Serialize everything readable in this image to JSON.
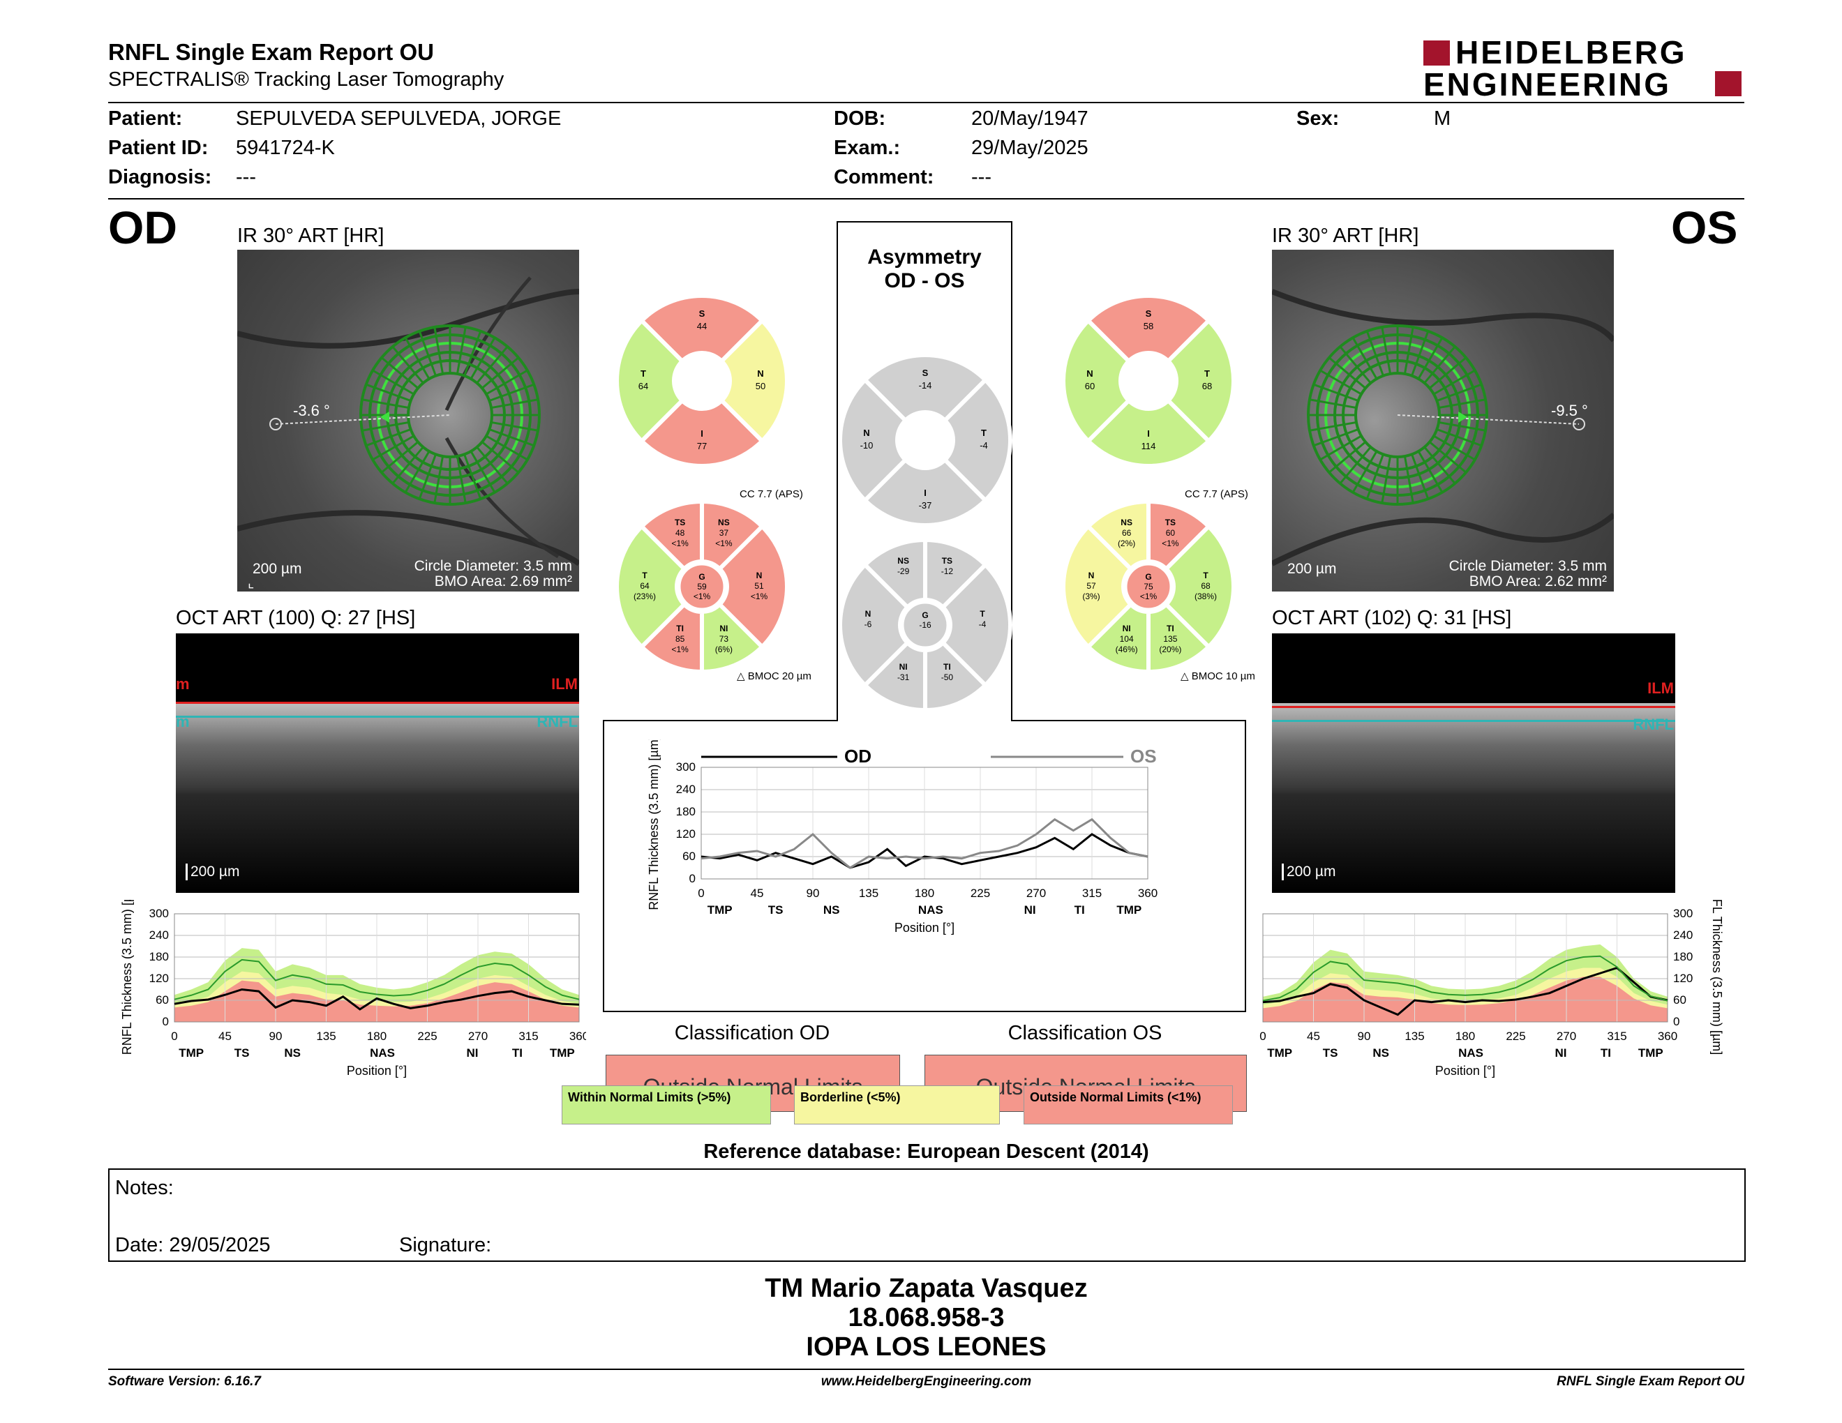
{
  "header": {
    "title": "RNFL Single Exam Report OU",
    "subtitle": "SPECTRALIS® Tracking Laser Tomography",
    "logo_line1": "HEIDELBERG",
    "logo_line2": "ENGINEERING"
  },
  "patient": {
    "patient_label": "Patient:",
    "patient_value": "SEPULVEDA SEPULVEDA, JORGE",
    "id_label": "Patient ID:",
    "id_value": "5941724-K",
    "diag_label": "Diagnosis:",
    "diag_value": "---",
    "dob_label": "DOB:",
    "dob_value": "20/May/1947",
    "exam_label": "Exam.:",
    "exam_value": "29/May/2025",
    "comment_label": "Comment:",
    "comment_value": "---",
    "sex_label": "Sex:",
    "sex_value": "M"
  },
  "od": {
    "eye": "OD",
    "ir_title": "IR 30° ART [HR]",
    "angle": "-3.6 °",
    "scale": "200 µm",
    "circle": "Circle Diameter: 3.5 mm",
    "bmo": "BMO Area: 2.69 mm²",
    "oct_title": "OCT ART (100) Q: 27 [HS]",
    "oct_scale": "200 µm",
    "ilm": "ILM",
    "rnfl": "RNFL",
    "ilm_left": "m",
    "rnfl_left": "m"
  },
  "os": {
    "eye": "OS",
    "ir_title": "IR 30° ART [HR]",
    "angle": "-9.5 °",
    "scale": "200 µm",
    "circle": "Circle Diameter: 3.5 mm",
    "bmo": "BMO Area: 2.62 mm²",
    "oct_title": "OCT ART (102) Q: 31 [HS]",
    "oct_scale": "200 µm",
    "ilm": "ILM",
    "rnfl": "RNFL"
  },
  "asymmetry": {
    "title1": "Asymmetry",
    "title2": "OD - OS"
  },
  "sectors": {
    "od4": {
      "S": "44",
      "T": "64",
      "N": "50",
      "I": "77"
    },
    "os4": {
      "S": "58",
      "N": "60",
      "T": "68",
      "I": "114"
    },
    "asym4": {
      "S": "-14",
      "N": "-10",
      "T": "-4",
      "I": "-37"
    },
    "od6": {
      "TS": [
        "48",
        "<1%"
      ],
      "NS": [
        "37",
        "<1%"
      ],
      "T": [
        "64",
        "(23%)"
      ],
      "G": [
        "59",
        "<1%"
      ],
      "N": [
        "51",
        "<1%"
      ],
      "TI": [
        "85",
        "<1%"
      ],
      "NI": [
        "73",
        "(6%)"
      ]
    },
    "os6": {
      "NS": [
        "66",
        "(2%)"
      ],
      "TS": [
        "60",
        "<1%"
      ],
      "N": [
        "57",
        "(3%)"
      ],
      "G": [
        "75",
        "<1%"
      ],
      "T": [
        "68",
        "(38%)"
      ],
      "NI": [
        "104",
        "(46%)"
      ],
      "TI": [
        "135",
        "(20%)"
      ]
    },
    "asym6": {
      "NS": "-29",
      "TS": "-12",
      "N": "-6",
      "G": "-16",
      "T": "-4",
      "NI": "-31",
      "TI": "-50"
    },
    "cc": "CC 7.7 (APS)",
    "od_bmoc": "BMOC 20 µm",
    "os_bmoc": "BMOC 10 µm"
  },
  "colors": {
    "normal": "#c6f08a",
    "borderline": "#f6f6a0",
    "outside": "#f4978c",
    "gray": "#d0d0d0",
    "brand": "#a3142c"
  },
  "chart_data": [
    {
      "type": "line",
      "name": "od_profile",
      "title": "",
      "xlabel": "Position [°]",
      "ylabel": "RNFL Thickness (3.5 mm) [µm]",
      "xlim": [
        0,
        360
      ],
      "ylim": [
        0,
        300
      ],
      "x_ticks": [
        0,
        45,
        90,
        135,
        180,
        225,
        270,
        315,
        360
      ],
      "y_ticks": [
        0,
        60,
        120,
        180,
        240,
        300
      ],
      "sector_labels": [
        "TMP",
        "TS",
        "NS",
        "NAS",
        "NI",
        "TI",
        "TMP"
      ],
      "x": [
        0,
        15,
        30,
        45,
        60,
        75,
        90,
        105,
        120,
        135,
        150,
        165,
        180,
        195,
        210,
        225,
        240,
        255,
        270,
        285,
        300,
        315,
        330,
        345,
        360
      ],
      "series": [
        {
          "name": "OD",
          "values": [
            50,
            58,
            62,
            75,
            90,
            85,
            40,
            60,
            55,
            45,
            70,
            35,
            65,
            50,
            38,
            45,
            55,
            62,
            72,
            80,
            85,
            70,
            60,
            50,
            48
          ]
        }
      ],
      "bands": {
        "normal_upper": [
          75,
          90,
          110,
          170,
          205,
          200,
          140,
          160,
          150,
          130,
          130,
          105,
          95,
          90,
          95,
          110,
          130,
          160,
          185,
          195,
          190,
          160,
          120,
          90,
          75
        ],
        "borderline_upper": [
          50,
          58,
          70,
          110,
          140,
          135,
          90,
          100,
          95,
          80,
          75,
          62,
          58,
          55,
          56,
          65,
          80,
          100,
          120,
          130,
          125,
          100,
          75,
          58,
          50
        ],
        "outside_upper": [
          40,
          45,
          55,
          85,
          115,
          110,
          70,
          80,
          75,
          62,
          60,
          48,
          45,
          43,
          45,
          52,
          65,
          82,
          100,
          110,
          105,
          85,
          62,
          45,
          40
        ]
      }
    },
    {
      "type": "line",
      "name": "os_profile",
      "title": "",
      "xlabel": "Position [°]",
      "ylabel": "RNFL Thickness (3.5 mm) [µm]",
      "xlim": [
        0,
        360
      ],
      "ylim": [
        0,
        300
      ],
      "x_ticks": [
        0,
        45,
        90,
        135,
        180,
        225,
        270,
        315,
        360
      ],
      "y_ticks": [
        0,
        60,
        120,
        180,
        240,
        300
      ],
      "sector_labels": [
        "TMP",
        "TS",
        "NS",
        "NAS",
        "NI",
        "TI",
        "TMP"
      ],
      "x": [
        0,
        15,
        30,
        45,
        60,
        75,
        90,
        105,
        120,
        135,
        150,
        165,
        180,
        195,
        210,
        225,
        240,
        255,
        270,
        285,
        300,
        315,
        330,
        345,
        360
      ],
      "series": [
        {
          "name": "OS",
          "values": [
            55,
            58,
            70,
            80,
            105,
            95,
            60,
            40,
            20,
            60,
            55,
            60,
            55,
            60,
            58,
            62,
            70,
            80,
            100,
            120,
            135,
            150,
            110,
            70,
            60
          ]
        }
      ],
      "bands": {
        "normal_upper": [
          70,
          80,
          110,
          165,
          200,
          190,
          140,
          135,
          130,
          120,
          100,
          92,
          90,
          92,
          100,
          115,
          140,
          175,
          200,
          210,
          215,
          180,
          120,
          85,
          70
        ],
        "borderline_upper": [
          48,
          55,
          72,
          110,
          135,
          130,
          92,
          88,
          85,
          78,
          65,
          60,
          58,
          60,
          65,
          75,
          95,
          120,
          140,
          150,
          150,
          125,
          80,
          58,
          48
        ],
        "outside_upper": [
          38,
          44,
          58,
          88,
          110,
          105,
          75,
          70,
          68,
          62,
          52,
          48,
          47,
          48,
          52,
          60,
          75,
          95,
          115,
          125,
          125,
          100,
          65,
          46,
          38
        ]
      }
    },
    {
      "type": "line",
      "name": "comparison",
      "title": "",
      "xlabel": "Position [°]",
      "ylabel": "RNFL Thickness (3.5 mm) [µm]",
      "xlim": [
        0,
        360
      ],
      "ylim": [
        0,
        300
      ],
      "x_ticks": [
        0,
        45,
        90,
        135,
        180,
        225,
        270,
        315,
        360
      ],
      "y_ticks": [
        0,
        60,
        120,
        180,
        240,
        300
      ],
      "sector_labels": [
        "TMP",
        "TS",
        "NS",
        "NAS",
        "NI",
        "TI",
        "TMP"
      ],
      "legend": [
        "OD",
        "OS"
      ],
      "x": [
        0,
        15,
        30,
        45,
        60,
        75,
        90,
        105,
        120,
        135,
        150,
        165,
        180,
        195,
        210,
        225,
        240,
        255,
        270,
        285,
        300,
        315,
        330,
        345,
        360
      ],
      "series": [
        {
          "name": "OD",
          "values": [
            60,
            55,
            65,
            50,
            70,
            55,
            40,
            60,
            30,
            45,
            80,
            35,
            60,
            55,
            40,
            50,
            60,
            70,
            85,
            110,
            80,
            120,
            90,
            70,
            60
          ]
        },
        {
          "name": "OS",
          "values": [
            55,
            60,
            70,
            75,
            60,
            80,
            120,
            70,
            30,
            60,
            55,
            60,
            55,
            60,
            55,
            70,
            75,
            90,
            120,
            160,
            130,
            160,
            110,
            70,
            60
          ]
        }
      ]
    }
  ],
  "od_chart_labels": {
    "od": "OD",
    "os": "OS"
  },
  "classification": {
    "od_label": "Classification OD",
    "od_value": "Outside Normal Limits",
    "os_label": "Classification OS",
    "os_value": "Outside Normal Limits",
    "legend_normal": "Within Normal Limits (>5%)",
    "legend_border": "Borderline (<5%)",
    "legend_outside": "Outside Normal Limits (<1%)"
  },
  "reference": "Reference database: European Descent (2014)",
  "notes": {
    "notes_label": "Notes:",
    "date_label": "Date: 29/05/2025",
    "signature_label": "Signature:"
  },
  "stamp": {
    "line1": "TM Mario Zapata Vasquez",
    "line2": "18.068.958-3",
    "line3": "IOPA LOS LEONES"
  },
  "footer": {
    "version": "Software Version: 6.16.7",
    "website": "www.HeidelbergEngineering.com",
    "report": "RNFL Single Exam Report OU"
  }
}
